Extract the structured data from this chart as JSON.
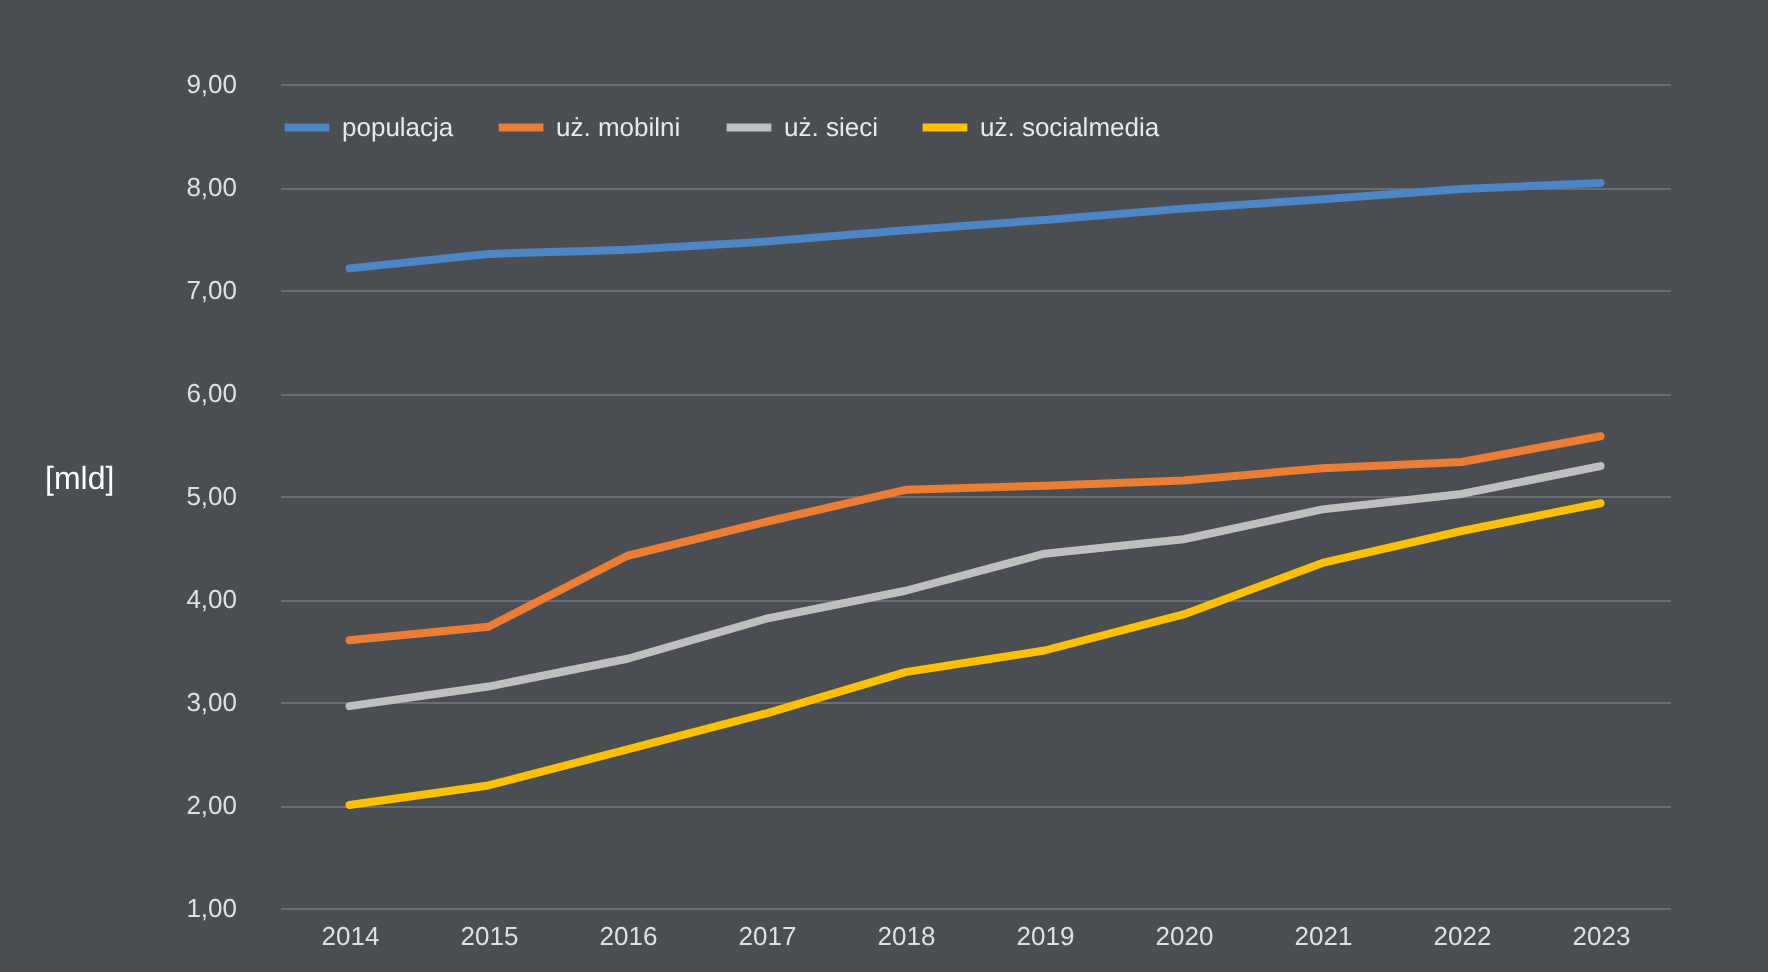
{
  "chart_data": {
    "type": "line",
    "ylabel": "[mld]",
    "categories": [
      "2014",
      "2015",
      "2016",
      "2017",
      "2018",
      "2019",
      "2020",
      "2021",
      "2022",
      "2023"
    ],
    "series": [
      {
        "name": "populacja",
        "color": "#4a86c8",
        "values": [
          7.21,
          7.35,
          7.39,
          7.47,
          7.58,
          7.68,
          7.79,
          7.88,
          7.98,
          8.04
        ]
      },
      {
        "name": "uż. mobilni",
        "color": "#ed7d31",
        "values": [
          3.6,
          3.73,
          4.42,
          4.75,
          5.06,
          5.1,
          5.15,
          5.27,
          5.33,
          5.58
        ]
      },
      {
        "name": "uż. sieci",
        "color": "#bfbfbf",
        "values": [
          2.96,
          3.15,
          3.42,
          3.81,
          4.08,
          4.44,
          4.58,
          4.87,
          5.02,
          5.29
        ]
      },
      {
        "name": "uż. socialmedia",
        "color": "#ffc000",
        "values": [
          2.0,
          2.19,
          2.54,
          2.89,
          3.29,
          3.5,
          3.85,
          4.35,
          4.66,
          4.93
        ]
      }
    ],
    "ylim": [
      1,
      9
    ],
    "yticks": [
      {
        "value": 1,
        "label": "1,00"
      },
      {
        "value": 2,
        "label": "2,00"
      },
      {
        "value": 3,
        "label": "3,00"
      },
      {
        "value": 4,
        "label": "4,00"
      },
      {
        "value": 5,
        "label": "5,00"
      },
      {
        "value": 6,
        "label": "6,00"
      },
      {
        "value": 7,
        "label": "7,00"
      },
      {
        "value": 8,
        "label": "8,00"
      },
      {
        "value": 9,
        "label": "9,00"
      }
    ],
    "grid": "y",
    "legend": "top",
    "marker": "none",
    "line_style": "solid"
  }
}
